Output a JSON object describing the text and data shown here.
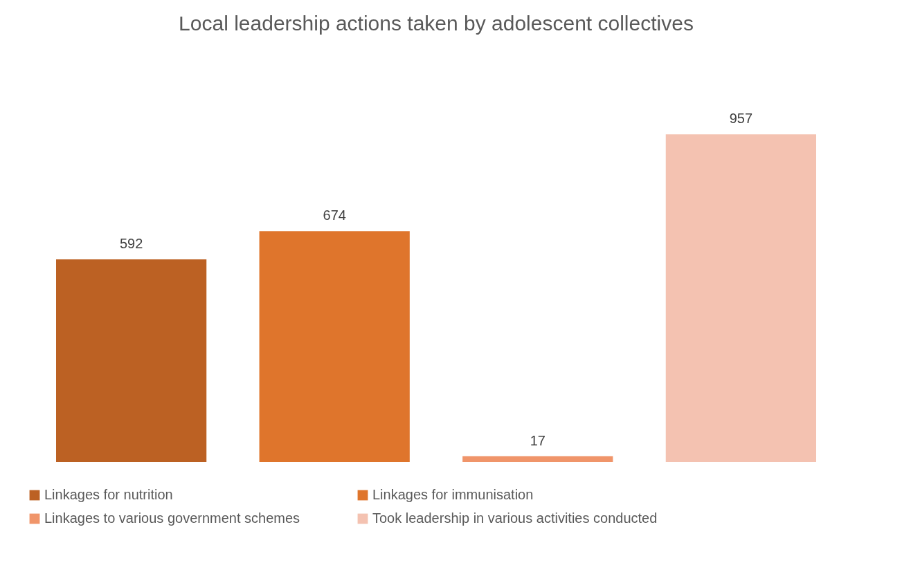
{
  "chart_data": {
    "type": "bar",
    "title": "Local leadership actions taken by adolescent collectives",
    "categories": [
      null
    ],
    "series": [
      {
        "name": "Linkages for nutrition",
        "color": "#bc6123",
        "values": [
          592
        ]
      },
      {
        "name": "Linkages for immunisation",
        "color": "#df752c",
        "values": [
          674
        ]
      },
      {
        "name": "Linkages to various government schemes",
        "color": "#f0956a",
        "values": [
          17
        ]
      },
      {
        "name": "Took leadership in various activities conducted",
        "color": "#f4c2b1",
        "values": [
          957
        ]
      }
    ],
    "data_labels": true,
    "legend": "bottom"
  }
}
